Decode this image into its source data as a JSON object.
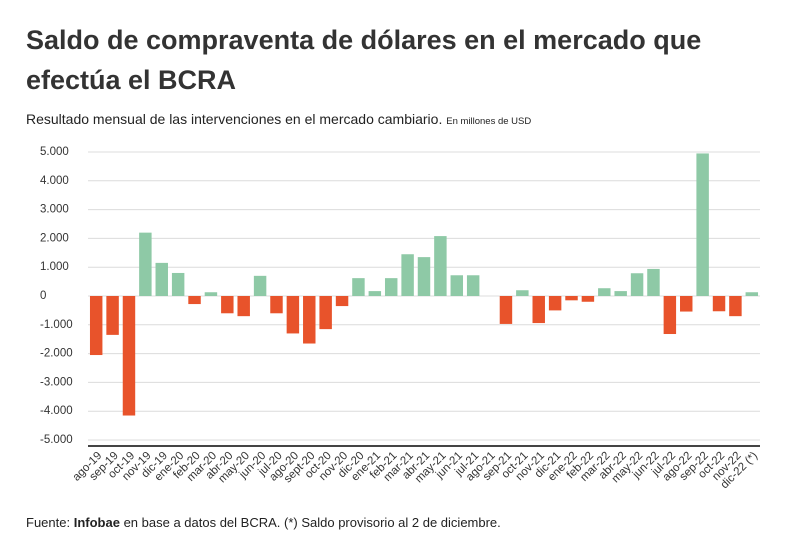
{
  "chart_data": {
    "type": "bar",
    "title": "Saldo de compraventa de dólares en el mercado que efectúa el BCRA",
    "subtitle": "Resultado  mensual de las intervenciones en el mercado cambiario.",
    "unit": "En millones de USD",
    "source_prefix": "Fuente:",
    "source_name": "Infobae",
    "source_note": "en base a datos del BCRA.  (*) Saldo provisorio al 2 de diciembre.",
    "categories": [
      "ago-19",
      "sep-19",
      "oct-19",
      "nov-19",
      "dic-19",
      "ene-20",
      "feb-20",
      "mar-20",
      "abr-20",
      "may-20",
      "jun-20",
      "jul-20",
      "ago-20",
      "sept-20",
      "oct-20",
      "nov-20",
      "dic-20",
      "ene-21",
      "feb-21",
      "mar-21",
      "abr-21",
      "may-21",
      "jun-21",
      "jul-21",
      "ago-21",
      "sep-21",
      "oct-21",
      "nov-21",
      "dic-21",
      "ene-22",
      "feb-22",
      "mar-22",
      "abr-22",
      "may-22",
      "jun-22",
      "jul-22",
      "ago-22",
      "sep-22",
      "oct-22",
      "nov-22",
      "dic-22 (*)"
    ],
    "values": [
      -2050,
      -1350,
      -4150,
      2200,
      1150,
      800,
      -280,
      130,
      -600,
      -700,
      700,
      -600,
      -1300,
      -1650,
      -1150,
      -350,
      620,
      170,
      620,
      1450,
      1350,
      2080,
      720,
      720,
      0,
      -970,
      200,
      -940,
      -500,
      -150,
      -200,
      270,
      170,
      790,
      940,
      -1320,
      -540,
      4950,
      -530,
      -700,
      130
    ],
    "positive_color": "#8ec9a6",
    "negative_color": "#e8532b",
    "ylim": [
      -5000,
      5000
    ],
    "yticks": [
      {
        "value": 5000,
        "label": "5.000"
      },
      {
        "value": 4000,
        "label": "4.000"
      },
      {
        "value": 3000,
        "label": "3.000"
      },
      {
        "value": 2000,
        "label": "2.000"
      },
      {
        "value": 1000,
        "label": "1.000"
      },
      0,
      {
        "value": -1000,
        "label": "-1.000"
      },
      {
        "value": -2000,
        "label": "-2.000"
      },
      {
        "value": -3000,
        "label": "-3.000"
      },
      {
        "value": -4000,
        "label": "-4.000"
      },
      {
        "value": -5000,
        "label": "-5.000"
      }
    ],
    "grid": true
  }
}
